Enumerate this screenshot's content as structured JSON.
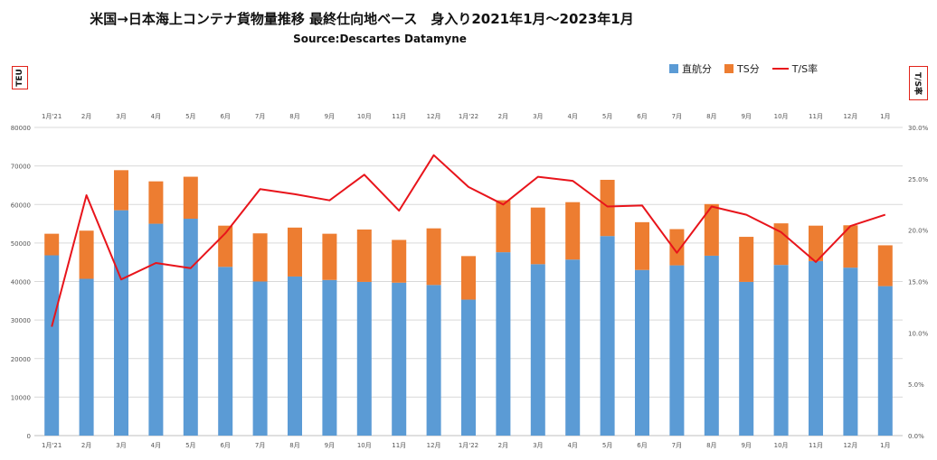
{
  "chart_data": {
    "type": "bar",
    "title": "米国→日本海上コンテナ貨物量推移  最終仕向地ベース　身入り2021年1月～2023年1月",
    "subtitle": "Source:Descartes Datamyne",
    "ylabel": "TEU",
    "y2label": "T/S率",
    "categories": [
      "1月'21",
      "2月",
      "3月",
      "4月",
      "5月",
      "6月",
      "7月",
      "8月",
      "9月",
      "10月",
      "11月",
      "12月",
      "1月'22",
      "2月",
      "3月",
      "4月",
      "5月",
      "6月",
      "7月",
      "8月",
      "9月",
      "10月",
      "11月",
      "12月",
      "1月"
    ],
    "series": [
      {
        "name": "直航分",
        "kind": "bar",
        "stack": "teu",
        "color": "#5b9bd5",
        "values": [
          46800,
          40700,
          58500,
          55000,
          56300,
          43800,
          40000,
          41300,
          40400,
          39900,
          39700,
          39100,
          35300,
          47600,
          44500,
          45700,
          51800,
          43000,
          44200,
          46700,
          39900,
          44300,
          45300,
          43600,
          38800
        ]
      },
      {
        "name": "TS分",
        "kind": "bar",
        "stack": "teu",
        "color": "#ed7d31",
        "values": [
          5600,
          12500,
          10400,
          11000,
          10900,
          10700,
          12500,
          12700,
          12000,
          13600,
          11100,
          14700,
          11300,
          13500,
          14700,
          14900,
          14600,
          12400,
          9400,
          13400,
          11700,
          10800,
          9200,
          11000,
          10600
        ]
      },
      {
        "name": "T/S率",
        "kind": "line",
        "axis": "right",
        "color": "#e8141b",
        "values": [
          10.6,
          23.4,
          15.2,
          16.8,
          16.3,
          19.7,
          24.0,
          23.5,
          22.9,
          25.4,
          21.9,
          27.3,
          24.2,
          22.5,
          25.2,
          24.8,
          22.3,
          22.4,
          17.8,
          22.3,
          21.5,
          19.8,
          16.9,
          20.4,
          21.5
        ]
      }
    ],
    "ylim": [
      0,
      80000
    ],
    "yticks": [
      0,
      10000,
      20000,
      30000,
      40000,
      50000,
      60000,
      70000,
      80000
    ],
    "ytick_labels": [
      "0",
      "10000",
      "20000",
      "30000",
      "40000",
      "50000",
      "60000",
      "70000",
      "80000"
    ],
    "y2lim": [
      0,
      30
    ],
    "y2ticks": [
      0,
      5,
      10,
      15,
      20,
      25,
      30
    ],
    "y2tick_labels": [
      "0.0%",
      "5.0%",
      "10.0%",
      "15.0%",
      "20.0%",
      "25.0%",
      "30.0%"
    ],
    "grid": true,
    "legend": "top-right"
  }
}
